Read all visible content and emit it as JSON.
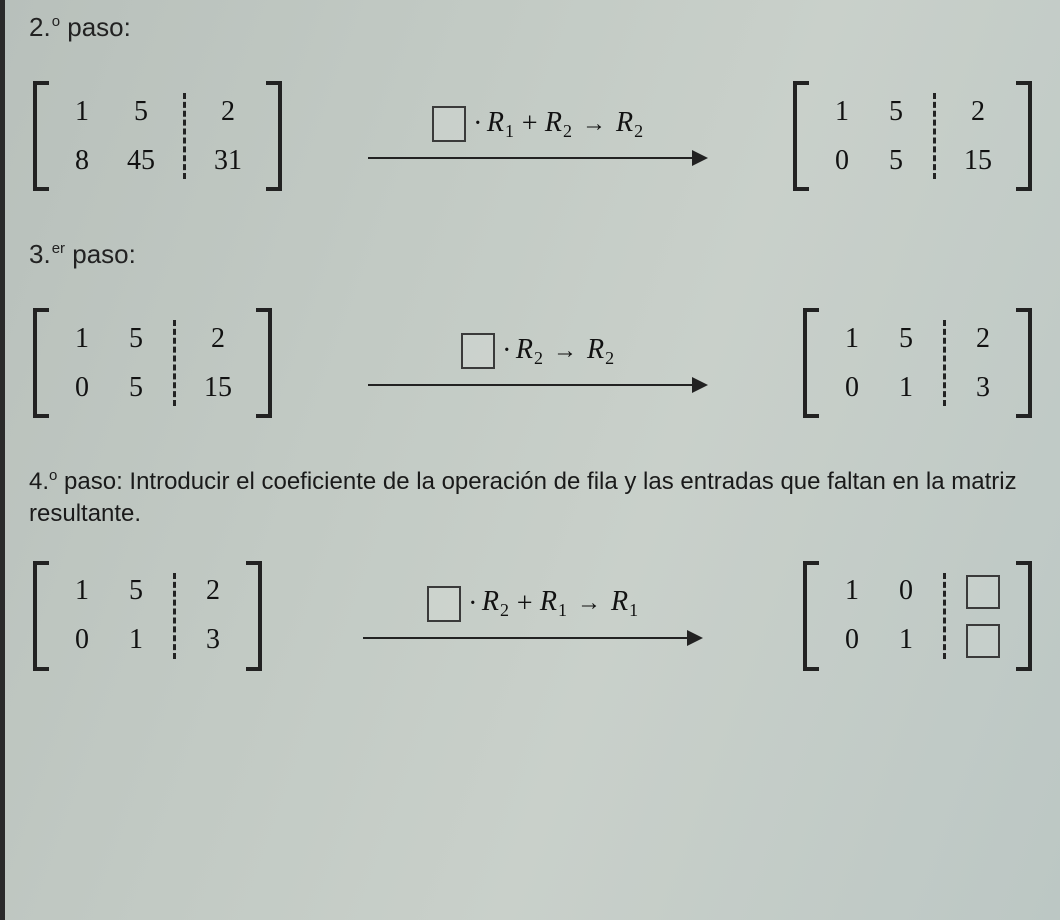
{
  "colors": {
    "text": "#1b1b1b",
    "bracket": "#222222",
    "input_border": "#3a3a3a",
    "bg_gradient_from": "#b8c0bb",
    "bg_gradient_to": "#bcc7c4",
    "left_border": "#2a2a2a"
  },
  "fonts": {
    "title_family": "Verdana, Arial, sans-serif",
    "math_family": "Georgia, \"Times New Roman\", serif",
    "title_size_pt": 20,
    "cell_size_pt": 21,
    "expr_size_pt": 21
  },
  "step2": {
    "label_num": "2.",
    "label_ord": "o",
    "label_word": " paso:",
    "left": {
      "rows": [
        [
          "1",
          "5",
          "2"
        ],
        [
          "8",
          "45",
          "31"
        ]
      ]
    },
    "right": {
      "rows": [
        [
          "1",
          "5",
          "2"
        ],
        [
          "0",
          "5",
          "15"
        ]
      ]
    },
    "op": {
      "dot": "·",
      "t1": "R",
      "s1": "1",
      "plus": " + ",
      "t2": "R",
      "s2": "2",
      "arrow": "→",
      "t3": "R",
      "s3": "2"
    }
  },
  "step3": {
    "label_num": "3.",
    "label_ord": "er",
    "label_word": " paso:",
    "left": {
      "rows": [
        [
          "1",
          "5",
          "2"
        ],
        [
          "0",
          "5",
          "15"
        ]
      ]
    },
    "right": {
      "rows": [
        [
          "1",
          "5",
          "2"
        ],
        [
          "0",
          "1",
          "3"
        ]
      ]
    },
    "op": {
      "dot": "·",
      "t1": "R",
      "s1": "2",
      "arrow": "→",
      "t2": "R",
      "s2": "2"
    }
  },
  "step4": {
    "label_num": "4.",
    "label_ord": "o",
    "label_word": " paso: ",
    "instruction": "Introducir el coeficiente de la operación de fila y las entradas que faltan en la matriz resultante.",
    "left": {
      "rows": [
        [
          "1",
          "5",
          "2"
        ],
        [
          "0",
          "1",
          "3"
        ]
      ]
    },
    "right": {
      "rows": [
        [
          "1",
          "0",
          null
        ],
        [
          "0",
          "1",
          null
        ]
      ]
    },
    "op": {
      "dot": "·",
      "t1": "R",
      "s1": "2",
      "plus": " + ",
      "t2": "R",
      "s2": "1",
      "arrow": "→",
      "t3": "R",
      "s3": "1"
    }
  }
}
